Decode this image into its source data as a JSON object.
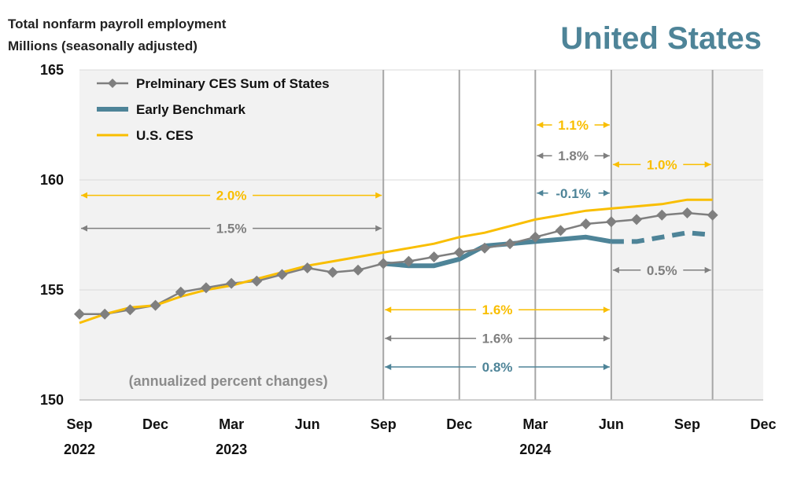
{
  "header": {
    "title_line1": "Total nonfarm payroll employment",
    "title_line2": "Millions (seasonally adjusted)",
    "region": "United States"
  },
  "colors": {
    "sum_of_states": "#7f7f7f",
    "benchmark": "#4e8498",
    "us_ces": "#f9be00",
    "shade": "#f2f2f2",
    "grid": "#d9d9d9",
    "divider": "#a6a6a6"
  },
  "chart_data": {
    "type": "line",
    "title": "Total nonfarm payroll employment",
    "ylabel": "Millions (seasonally adjusted)",
    "xlabel": "",
    "ylim": [
      150,
      165
    ],
    "yticks": [
      150,
      155,
      160,
      165
    ],
    "x_range": [
      "2022-09",
      "2024-12"
    ],
    "x_ticks": [
      {
        "date": "2022-09",
        "label": "Sep",
        "year": "2022"
      },
      {
        "date": "2022-12",
        "label": "Dec",
        "year": ""
      },
      {
        "date": "2023-03",
        "label": "Mar",
        "year": "2023"
      },
      {
        "date": "2023-06",
        "label": "Jun",
        "year": ""
      },
      {
        "date": "2023-09",
        "label": "Sep",
        "year": ""
      },
      {
        "date": "2023-12",
        "label": "Dec",
        "year": ""
      },
      {
        "date": "2024-03",
        "label": "Mar",
        "year": "2024"
      },
      {
        "date": "2024-06",
        "label": "Jun",
        "year": ""
      },
      {
        "date": "2024-09",
        "label": "Sep",
        "year": ""
      },
      {
        "date": "2024-12",
        "label": "Dec",
        "year": ""
      }
    ],
    "shaded_ranges": [
      [
        "2022-09",
        "2023-09"
      ],
      [
        "2024-06",
        "2024-12"
      ]
    ],
    "dividers": [
      "2023-09",
      "2023-12",
      "2024-03",
      "2024-06",
      "2024-10"
    ],
    "grid": true,
    "legend_position": "top-left",
    "series": [
      {
        "name": "Prelminary CES Sum of States",
        "marker": "diamond",
        "x": [
          "2022-09",
          "2022-10",
          "2022-11",
          "2022-12",
          "2023-01",
          "2023-02",
          "2023-03",
          "2023-04",
          "2023-05",
          "2023-06",
          "2023-07",
          "2023-08",
          "2023-09",
          "2023-10",
          "2023-11",
          "2023-12",
          "2024-01",
          "2024-02",
          "2024-03",
          "2024-04",
          "2024-05",
          "2024-06",
          "2024-07",
          "2024-08",
          "2024-09",
          "2024-10"
        ],
        "values": [
          153.9,
          153.9,
          154.1,
          154.3,
          154.9,
          155.1,
          155.3,
          155.4,
          155.7,
          156.0,
          155.8,
          155.9,
          156.2,
          156.3,
          156.5,
          156.7,
          156.9,
          157.1,
          157.4,
          157.7,
          158.0,
          158.1,
          158.2,
          158.4,
          158.5,
          158.4
        ]
      },
      {
        "name": "Early Benchmark",
        "x": [
          "2023-09",
          "2023-10",
          "2023-11",
          "2023-12",
          "2024-01",
          "2024-02",
          "2024-03",
          "2024-04",
          "2024-05",
          "2024-06"
        ],
        "values": [
          156.2,
          156.1,
          156.1,
          156.4,
          157.0,
          157.1,
          157.2,
          157.3,
          157.4,
          157.2
        ]
      },
      {
        "name": "Early Benchmark (projected)",
        "dashed": true,
        "x": [
          "2024-06",
          "2024-07",
          "2024-08",
          "2024-09",
          "2024-10"
        ],
        "values": [
          157.2,
          157.2,
          157.4,
          157.6,
          157.5
        ]
      },
      {
        "name": "U.S. CES",
        "x": [
          "2022-09",
          "2022-10",
          "2022-11",
          "2022-12",
          "2023-01",
          "2023-02",
          "2023-03",
          "2023-04",
          "2023-05",
          "2023-06",
          "2023-07",
          "2023-08",
          "2023-09",
          "2023-10",
          "2023-11",
          "2023-12",
          "2024-01",
          "2024-02",
          "2024-03",
          "2024-04",
          "2024-05",
          "2024-06",
          "2024-07",
          "2024-08",
          "2024-09",
          "2024-10"
        ],
        "values": [
          153.5,
          153.9,
          154.2,
          154.3,
          154.7,
          155.0,
          155.2,
          155.5,
          155.8,
          156.1,
          156.3,
          156.5,
          156.7,
          156.9,
          157.1,
          157.4,
          157.6,
          157.9,
          158.2,
          158.4,
          158.6,
          158.7,
          158.8,
          158.9,
          159.1,
          159.1
        ]
      }
    ],
    "annotations": [
      {
        "text": "2.0%",
        "color": "#f9be00",
        "x1": "2022-09",
        "x2": "2023-09",
        "y": 159.3
      },
      {
        "text": "1.5%",
        "color": "#7f7f7f",
        "x1": "2022-09",
        "x2": "2023-09",
        "y": 157.8
      },
      {
        "text": "1.1%",
        "color": "#f9be00",
        "x1": "2024-03",
        "x2": "2024-06",
        "y": 162.5
      },
      {
        "text": "1.8%",
        "color": "#7f7f7f",
        "x1": "2024-03",
        "x2": "2024-06",
        "y": 161.1
      },
      {
        "text": "1.0%",
        "color": "#f9be00",
        "x1": "2024-06",
        "x2": "2024-10",
        "y": 160.7
      },
      {
        "text": "-0.1%",
        "color": "#4e8498",
        "x1": "2024-03",
        "x2": "2024-06",
        "y": 159.4
      },
      {
        "text": "0.5%",
        "color": "#7f7f7f",
        "x1": "2024-06",
        "x2": "2024-10",
        "y": 155.9
      },
      {
        "text": "1.6%",
        "color": "#f9be00",
        "x1": "2023-09",
        "x2": "2024-06",
        "y": 154.1
      },
      {
        "text": "1.6%",
        "color": "#7f7f7f",
        "x1": "2023-09",
        "x2": "2024-06",
        "y": 152.8
      },
      {
        "text": "0.8%",
        "color": "#4e8498",
        "x1": "2023-09",
        "x2": "2024-06",
        "y": 151.5
      }
    ],
    "note": "(annualized percent changes)"
  }
}
